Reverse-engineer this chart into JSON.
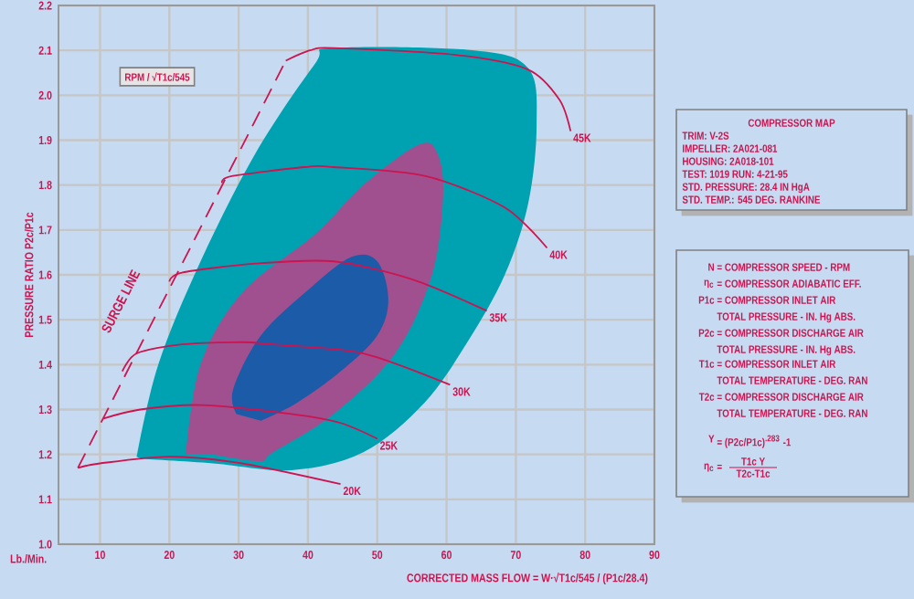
{
  "chart_data": {
    "type": "line",
    "xlabel": "CORRECTED MASS FLOW = W·√T1c/545 / (P1c/28.4)",
    "ylabel": "PRESSURE RATIO P2c/P1c",
    "xlim": [
      4,
      90
    ],
    "ylim": [
      1.0,
      2.2
    ],
    "xticks": [
      10,
      20,
      30,
      40,
      50,
      60,
      70,
      80,
      90
    ],
    "yticks": [
      {
        "value": 1.0,
        "label": "1.0"
      },
      1.1,
      1.2,
      1.3,
      1.4,
      1.5,
      1.6,
      1.7,
      1.8,
      1.9,
      {
        "value": 2.0,
        "label": "2.0"
      },
      2.1,
      2.2
    ],
    "grid": true,
    "line_style": "solid",
    "series": [
      {
        "type": "area",
        "color": "#00a2b2",
        "x": [
          15.3,
          18.4,
          24.5,
          32.4,
          41,
          43.7,
          64,
          71.8,
          73,
          71.8,
          68.4,
          63,
          56.8,
          48,
          37.6,
          26.3,
          16
        ],
        "values": [
          1.195,
          1.4,
          1.63,
          1.87,
          2.07,
          2.105,
          2.1,
          2.06,
          1.935,
          1.76,
          1.6,
          1.45,
          1.315,
          1.205,
          1.165,
          1.18,
          1.19
        ]
      },
      {
        "type": "area",
        "color": "#a0508f",
        "x": [
          22.4,
          24.5,
          30.5,
          41,
          48,
          56,
          58.7,
          59.5,
          57.9,
          52.6,
          43.7,
          35,
          33,
          26.3
        ],
        "values": [
          1.2,
          1.4,
          1.56,
          1.69,
          1.8,
          1.89,
          1.87,
          1.775,
          1.6,
          1.425,
          1.29,
          1.205,
          1.185,
          1.2
        ]
      },
      {
        "type": "area",
        "color": "#1c5ba8",
        "x": [
          29.7,
          29.2,
          33.2,
          40.3,
          46.3,
          50,
          51.6,
          50,
          44.7,
          38.4,
          33.2
        ],
        "values": [
          1.29,
          1.345,
          1.465,
          1.57,
          1.64,
          1.63,
          1.545,
          1.465,
          1.385,
          1.315,
          1.275
        ]
      },
      {
        "name": "20K",
        "color": "#cc1450",
        "x": [
          6.8,
          10,
          20,
          30.5,
          44.7
        ],
        "values": [
          1.17,
          1.18,
          1.195,
          1.18,
          1.134
        ]
      },
      {
        "name": "25K",
        "color": "#cc1450",
        "x": [
          10.5,
          15.8,
          24.5,
          37.6,
          44.7,
          50
        ],
        "values": [
          1.28,
          1.3,
          1.31,
          1.29,
          1.27,
          1.235
        ]
      },
      {
        "name": "30K",
        "color": "#cc1450",
        "x": [
          13.2,
          15.3,
          21.8,
          30.5,
          35,
          48,
          60.5
        ],
        "values": [
          1.385,
          1.425,
          1.445,
          1.45,
          1.445,
          1.425,
          1.355
        ]
      },
      {
        "name": "35K",
        "color": "#cc1450",
        "x": [
          20,
          21.8,
          32.4,
          43.7,
          55,
          65.8
        ],
        "values": [
          1.585,
          1.605,
          1.625,
          1.63,
          1.59,
          1.52
        ]
      },
      {
        "name": "40K",
        "color": "#cc1450",
        "x": [
          27.6,
          29,
          39.5,
          43.7,
          57,
          68.4,
          74.5
        ],
        "values": [
          1.805,
          1.82,
          1.84,
          1.84,
          1.82,
          1.75,
          1.66
        ]
      },
      {
        "name": "45K",
        "color": "#cc1450",
        "x": [
          36.8,
          40.3,
          43.7,
          61.3,
          71.8,
          76.3,
          77.9
        ],
        "values": [
          2.077,
          2.1,
          2.105,
          2.09,
          2.057,
          1.99,
          1.92
        ]
      },
      {
        "color": "#cc1450",
        "line_style": "dashed",
        "x": [
          6.8,
          36.8
        ],
        "values": [
          1.17,
          2.077
        ]
      }
    ],
    "annotations": [
      "RPM / √T1c/545",
      "SURGE LINE",
      "Lb./Min.",
      "COMPRESSOR MAP",
      "TRIM: V-2S",
      "IMPELLER: 2A021-081",
      "HOUSING: 2A018-101",
      "TEST: 1019     RUN: 4-21-95",
      "STD. PRESSURE: 28.4 IN  HgA",
      "STD. TEMP.: 545 DEG. RANKINE",
      "N",
      "= COMPRESSOR SPEED - RPM",
      "η$_{c}$",
      "= COMPRESSOR ADIABATIC EFF.",
      "P1c",
      "= COMPRESSOR INLET AIR",
      "TOTAL PRESSURE - IN. Hg ABS.",
      "P2c",
      "= COMPRESSOR DISCHARGE AIR",
      "TOTAL PRESSURE - IN. Hg ABS.",
      "T1c",
      "= COMPRESSOR INLET AIR",
      "TOTAL TEMPERATURE - DEG. RAN",
      "T2c",
      "= COMPRESSOR DISCHARGE AIR",
      "TOTAL TEMPERATURE - DEG. RAN",
      "Y",
      "= (P2c/P1c)$^{.283}$ -1",
      "η$_{c}$",
      "=",
      "T1c Y",
      "T2c-T1c"
    ]
  }
}
